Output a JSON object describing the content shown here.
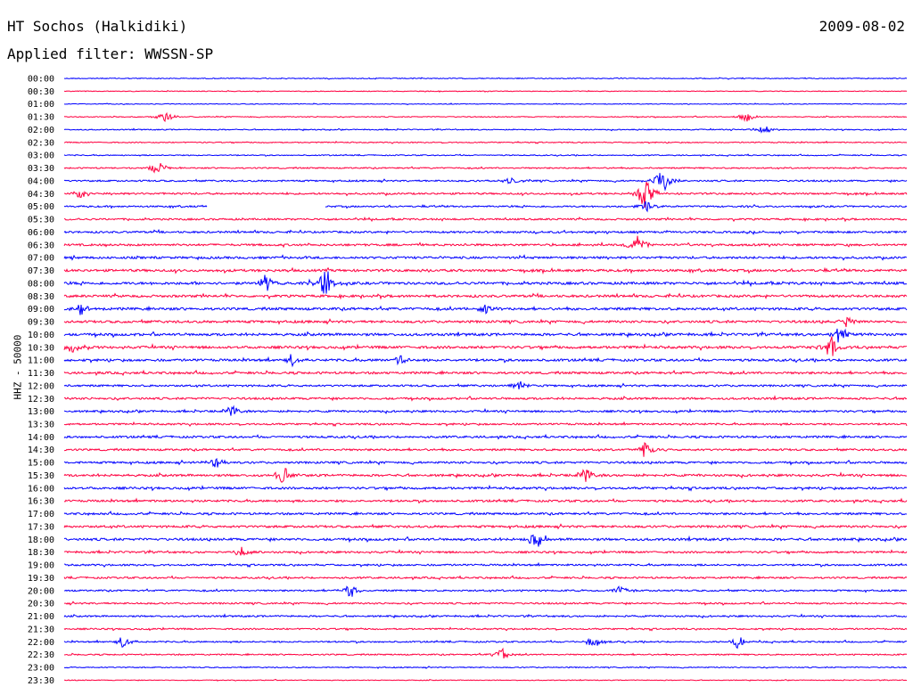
{
  "header": {
    "station": "HT Sochos (Halkidiki)",
    "date": "2009-08-02",
    "filter": "Applied filter: WWSSN-SP"
  },
  "colors": {
    "blue": "#0000ff",
    "red": "#ff0040"
  },
  "chart_data": {
    "type": "line",
    "title": "HT Sochos (Halkidiki)",
    "subtitle": "Applied filter: WWSSN-SP",
    "ylabel": "HHZ - 50000",
    "row_labels": [
      "00:00",
      "00:30",
      "01:00",
      "01:30",
      "02:00",
      "02:30",
      "03:00",
      "03:30",
      "04:00",
      "04:30",
      "05:00",
      "05:30",
      "06:00",
      "06:30",
      "07:00",
      "07:30",
      "08:00",
      "08:30",
      "09:00",
      "09:30",
      "10:00",
      "10:30",
      "11:00",
      "11:30",
      "12:00",
      "12:30",
      "13:00",
      "13:30",
      "14:00",
      "14:30",
      "15:00",
      "15:30",
      "16:00",
      "16:30",
      "17:00",
      "17:30",
      "18:00",
      "18:30",
      "19:00",
      "19:30",
      "20:00",
      "20:30",
      "21:00",
      "21:30",
      "22:00",
      "22:30",
      "23:00",
      "23:30"
    ],
    "row_colors": [
      "blue",
      "red"
    ],
    "noise_level": [
      0.3,
      0.25,
      0.25,
      0.3,
      0.35,
      0.35,
      0.35,
      0.45,
      0.55,
      0.6,
      0.55,
      0.6,
      0.65,
      0.7,
      0.75,
      0.8,
      0.85,
      0.8,
      0.85,
      0.8,
      0.85,
      0.85,
      0.8,
      0.75,
      0.65,
      0.7,
      0.65,
      0.6,
      0.7,
      0.65,
      0.7,
      0.75,
      0.75,
      0.7,
      0.7,
      0.75,
      0.8,
      0.65,
      0.6,
      0.6,
      0.55,
      0.55,
      0.55,
      0.5,
      0.5,
      0.45,
      0.35,
      0.25
    ],
    "gaps": [
      {
        "row": "05:00",
        "from": 0.17,
        "to": 0.31
      }
    ],
    "events": [
      {
        "row": "01:30",
        "at": 0.12,
        "amp": 7
      },
      {
        "row": "01:30",
        "at": 0.81,
        "amp": 7
      },
      {
        "row": "02:00",
        "at": 0.83,
        "amp": 9
      },
      {
        "row": "03:30",
        "at": 0.11,
        "amp": 10
      },
      {
        "row": "04:00",
        "at": 0.53,
        "amp": 7
      },
      {
        "row": "04:00",
        "at": 0.71,
        "amp": 20
      },
      {
        "row": "04:30",
        "at": 0.02,
        "amp": 8
      },
      {
        "row": "04:30",
        "at": 0.69,
        "amp": 22
      },
      {
        "row": "05:00",
        "at": 0.69,
        "amp": 8
      },
      {
        "row": "06:30",
        "at": 0.68,
        "amp": 12
      },
      {
        "row": "08:00",
        "at": 0.24,
        "amp": 12
      },
      {
        "row": "08:00",
        "at": 0.31,
        "amp": 20
      },
      {
        "row": "09:00",
        "at": 0.02,
        "amp": 7
      },
      {
        "row": "09:00",
        "at": 0.5,
        "amp": 8
      },
      {
        "row": "09:30",
        "at": 0.93,
        "amp": 7
      },
      {
        "row": "10:00",
        "at": 0.92,
        "amp": 12
      },
      {
        "row": "10:30",
        "at": 0.01,
        "amp": 9
      },
      {
        "row": "10:30",
        "at": 0.91,
        "amp": 14
      },
      {
        "row": "11:00",
        "at": 0.27,
        "amp": 9
      },
      {
        "row": "11:00",
        "at": 0.4,
        "amp": 7
      },
      {
        "row": "12:00",
        "at": 0.54,
        "amp": 6
      },
      {
        "row": "13:00",
        "at": 0.2,
        "amp": 8
      },
      {
        "row": "14:30",
        "at": 0.69,
        "amp": 10
      },
      {
        "row": "15:00",
        "at": 0.18,
        "amp": 9
      },
      {
        "row": "15:30",
        "at": 0.26,
        "amp": 12
      },
      {
        "row": "15:30",
        "at": 0.62,
        "amp": 10
      },
      {
        "row": "18:00",
        "at": 0.56,
        "amp": 12
      },
      {
        "row": "18:30",
        "at": 0.21,
        "amp": 7
      },
      {
        "row": "20:00",
        "at": 0.34,
        "amp": 10
      },
      {
        "row": "20:00",
        "at": 0.66,
        "amp": 7
      },
      {
        "row": "22:00",
        "at": 0.07,
        "amp": 9
      },
      {
        "row": "22:00",
        "at": 0.63,
        "amp": 9
      },
      {
        "row": "22:00",
        "at": 0.8,
        "amp": 8
      },
      {
        "row": "22:30",
        "at": 0.52,
        "amp": 8
      }
    ]
  }
}
